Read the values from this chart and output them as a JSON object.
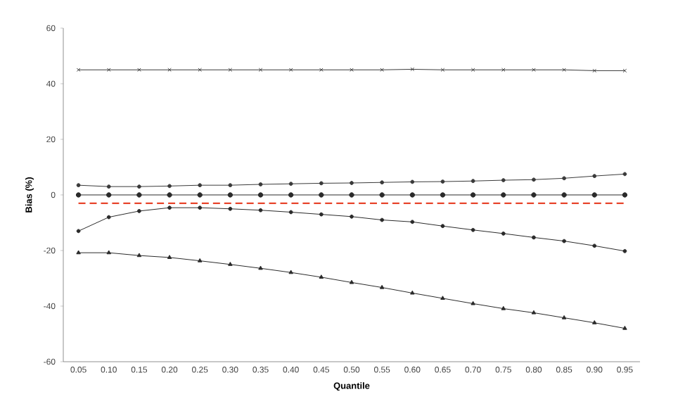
{
  "chart_data": {
    "type": "line",
    "xlabel": "Quantile",
    "ylabel": "Bias (%)",
    "categories": [
      "0.05",
      "0.10",
      "0.15",
      "0.20",
      "0.25",
      "0.30",
      "0.35",
      "0.40",
      "0.45",
      "0.50",
      "0.55",
      "0.60",
      "0.65",
      "0.70",
      "0.75",
      "0.80",
      "0.85",
      "0.90",
      "0.95"
    ],
    "ylim": [
      -60,
      60
    ],
    "yticks": [
      -60,
      -40,
      -20,
      0,
      20,
      40,
      60
    ],
    "grid": false,
    "series": [
      {
        "color": "#3a3a3a",
        "marker": "cross",
        "values": [
          45,
          45,
          45,
          45,
          45,
          45,
          45,
          45,
          45,
          45,
          45,
          45.2,
          45,
          45,
          45,
          45,
          45,
          44.7,
          44.7
        ]
      },
      {
        "color": "#3a3a3a",
        "marker": "circle",
        "values": [
          3.5,
          3,
          3,
          3.2,
          3.5,
          3.5,
          3.8,
          4,
          4.2,
          4.3,
          4.5,
          4.7,
          4.8,
          5,
          5.3,
          5.5,
          6,
          6.8,
          7.5
        ]
      },
      {
        "color": "#2a2a2a",
        "marker": "circle",
        "values": [
          0,
          0,
          0,
          0,
          0,
          0,
          0,
          0,
          0,
          0,
          0,
          0,
          0,
          0,
          0,
          0,
          0,
          0,
          0
        ]
      },
      {
        "color": "#e8452c",
        "marker": "none",
        "line_style": "dashed",
        "values": [
          -3,
          -3,
          -3,
          -3,
          -3,
          -3,
          -3,
          -3,
          -3,
          -3,
          -3,
          -3,
          -3,
          -3,
          -3,
          -3,
          -3,
          -3,
          -3
        ]
      },
      {
        "color": "#2a2a2a",
        "marker": "circle",
        "values": [
          -13,
          -8,
          -5.8,
          -4.6,
          -4.6,
          -5,
          -5.5,
          -6.2,
          -7,
          -7.8,
          -9,
          -9.7,
          -11.2,
          -12.6,
          -13.9,
          -15.3,
          -16.6,
          -18.3,
          -20.2
        ]
      },
      {
        "color": "#2a2a2a",
        "marker": "triangle",
        "values": [
          -20.8,
          -20.8,
          -21.8,
          -22.5,
          -23.7,
          -25,
          -26.4,
          -27.9,
          -29.6,
          -31.5,
          -33.3,
          -35.3,
          -37.2,
          -39.1,
          -40.9,
          -42.4,
          -44.2,
          -46,
          -48
        ]
      }
    ]
  }
}
